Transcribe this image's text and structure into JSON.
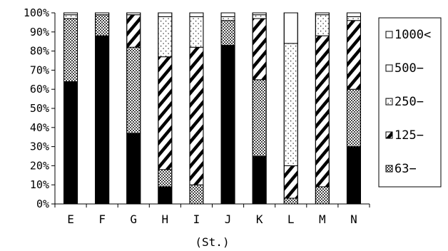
{
  "chart_data": {
    "type": "bar",
    "stacked": true,
    "percent": true,
    "xlabel": "(St.)",
    "ylabel": "",
    "ylim": [
      0,
      100
    ],
    "categories": [
      "E",
      "F",
      "G",
      "H",
      "I",
      "J",
      "K",
      "L",
      "M",
      "N"
    ],
    "y_ticks": [
      "0%",
      "10%",
      "20%",
      "30%",
      "40%",
      "50%",
      "60%",
      "70%",
      "80%",
      "90%",
      "100%"
    ],
    "series": [
      {
        "name": "",
        "pattern": "solid",
        "values": [
          64,
          88,
          37,
          9,
          0,
          83,
          25,
          0,
          0,
          30
        ]
      },
      {
        "name": "63−",
        "pattern": "crosshatch",
        "values": [
          33,
          11,
          45,
          9,
          10,
          13,
          40,
          3,
          9,
          30
        ]
      },
      {
        "name": "125−",
        "pattern": "diagonal",
        "values": [
          0,
          0,
          17,
          59,
          72,
          0,
          32,
          17,
          79,
          36
        ]
      },
      {
        "name": "250−",
        "pattern": "dots",
        "values": [
          2,
          0,
          0,
          21,
          16,
          2,
          2,
          64,
          11,
          2
        ]
      },
      {
        "name": "500−",
        "pattern": "open",
        "values": [
          1,
          1,
          1,
          2,
          2,
          2,
          1,
          16,
          1,
          2
        ]
      },
      {
        "name": "1000<",
        "pattern": "open",
        "values": [
          0,
          0,
          0,
          0,
          0,
          0,
          0,
          0,
          0,
          0
        ]
      }
    ],
    "legend": {
      "position": "right",
      "entries": [
        "1000<",
        "500−",
        "250−",
        "125−",
        "63−"
      ]
    },
    "grid": false
  }
}
